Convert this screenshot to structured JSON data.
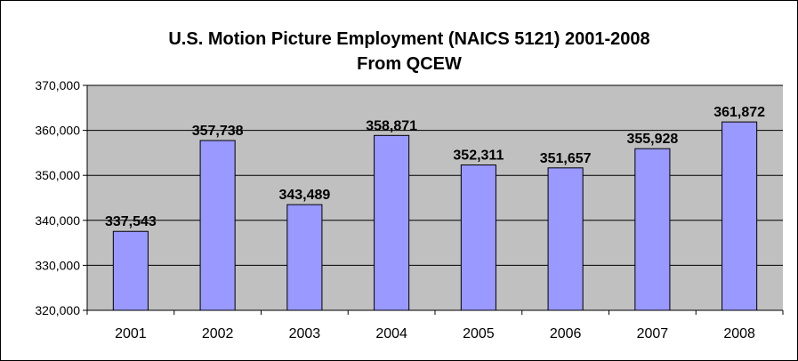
{
  "chart_data": {
    "type": "bar",
    "title": "U.S. Motion Picture Employment (NAICS 5121) 2001-2008",
    "subtitle": "From QCEW",
    "xlabel": "",
    "ylabel": "",
    "categories": [
      "2001",
      "2002",
      "2003",
      "2004",
      "2005",
      "2006",
      "2007",
      "2008"
    ],
    "values": [
      337543,
      357738,
      343489,
      358871,
      352311,
      351657,
      355928,
      361872
    ],
    "data_labels": [
      "337,543",
      "357,738",
      "343,489",
      "358,871",
      "352,311",
      "351,657",
      "355,928",
      "361,872"
    ],
    "ylim": [
      320000,
      370000
    ],
    "yticks": [
      320000,
      330000,
      340000,
      350000,
      360000,
      370000
    ],
    "ytick_labels": [
      "320,000",
      "330,000",
      "340,000",
      "350,000",
      "360,000",
      "370,000"
    ],
    "grid": true,
    "legend": "none",
    "colors": {
      "bar": "#9999ff",
      "bar_edge": "#000000",
      "plot_bg": "#c0c0c0",
      "gridline": "#000000"
    }
  }
}
